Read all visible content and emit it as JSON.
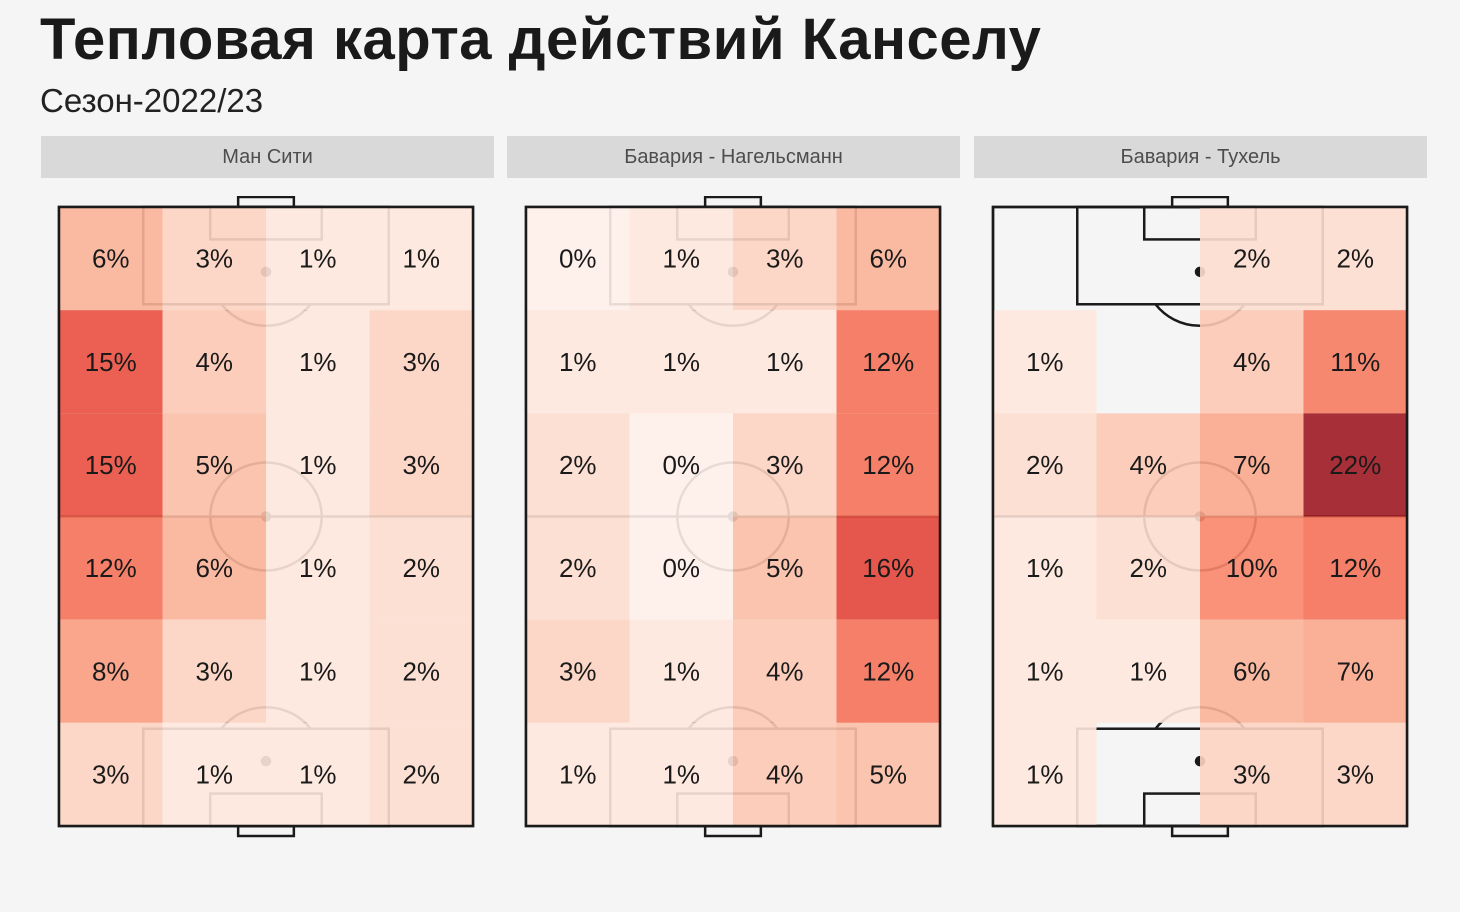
{
  "header": {
    "title": "Тепловая карта действий Канселу",
    "subtitle": "Сезон-2022/23"
  },
  "colors": {
    "background": "#f5f5f5",
    "strip": "#d9d9d9",
    "strip_text": "#4d4d4d",
    "scale_low": "#fff1eb",
    "scale_high": "#9e1a22",
    "pitch_lines": "#1a1a1a"
  },
  "chart_data": [
    {
      "type": "heatmap",
      "panel": "Ман Сити",
      "grid": {
        "rows": 6,
        "cols": 4
      },
      "values": [
        [
          6,
          3,
          1,
          1
        ],
        [
          15,
          4,
          1,
          3
        ],
        [
          15,
          5,
          1,
          3
        ],
        [
          12,
          6,
          1,
          2
        ],
        [
          8,
          3,
          1,
          2
        ],
        [
          3,
          1,
          1,
          2
        ]
      ]
    },
    {
      "type": "heatmap",
      "panel": "Бавария - Нагельсманн",
      "grid": {
        "rows": 6,
        "cols": 4
      },
      "values": [
        [
          0,
          1,
          3,
          6
        ],
        [
          1,
          1,
          1,
          12
        ],
        [
          2,
          0,
          3,
          12
        ],
        [
          2,
          0,
          5,
          16
        ],
        [
          3,
          1,
          4,
          12
        ],
        [
          1,
          1,
          4,
          5
        ]
      ]
    },
    {
      "type": "heatmap",
      "panel": "Бавария - Тухель",
      "grid": {
        "rows": 6,
        "cols": 4
      },
      "values": [
        [
          null,
          null,
          2,
          2
        ],
        [
          1,
          null,
          4,
          11
        ],
        [
          2,
          4,
          7,
          22
        ],
        [
          1,
          2,
          10,
          12
        ],
        [
          1,
          1,
          6,
          7
        ],
        [
          1,
          null,
          3,
          3
        ]
      ]
    }
  ]
}
